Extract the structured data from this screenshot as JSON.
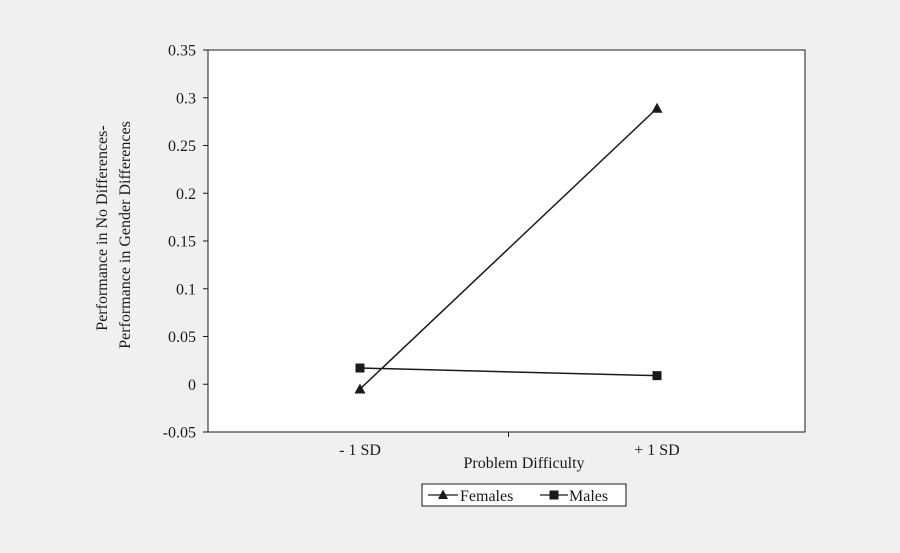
{
  "colors": {
    "background": "#f0f0f0",
    "plot_background": "#ffffff",
    "axis": "#1a1a1a",
    "series_line": "#1a1a1a"
  },
  "chart_data": {
    "type": "line",
    "title": "",
    "xlabel": "Problem Difficulty",
    "ylabel_lines": [
      "Performance in No Differences-",
      "Performance in Gender Differences"
    ],
    "categories": [
      "- 1 SD",
      "+ 1 SD"
    ],
    "ylim": [
      -0.05,
      0.35
    ],
    "yticks": [
      -0.05,
      0,
      0.05,
      0.1,
      0.15,
      0.2,
      0.25,
      0.3,
      0.35
    ],
    "ytick_labels": [
      "-0.05",
      "0",
      "0.05",
      "0.1",
      "0.15",
      "0.2",
      "0.25",
      "0.3",
      "0.35"
    ],
    "grid": false,
    "legend_position": "bottom-center",
    "series": [
      {
        "name": "Females",
        "marker": "triangle",
        "values": [
          -0.005,
          0.289
        ]
      },
      {
        "name": "Males",
        "marker": "square",
        "values": [
          0.017,
          0.009
        ]
      }
    ]
  }
}
